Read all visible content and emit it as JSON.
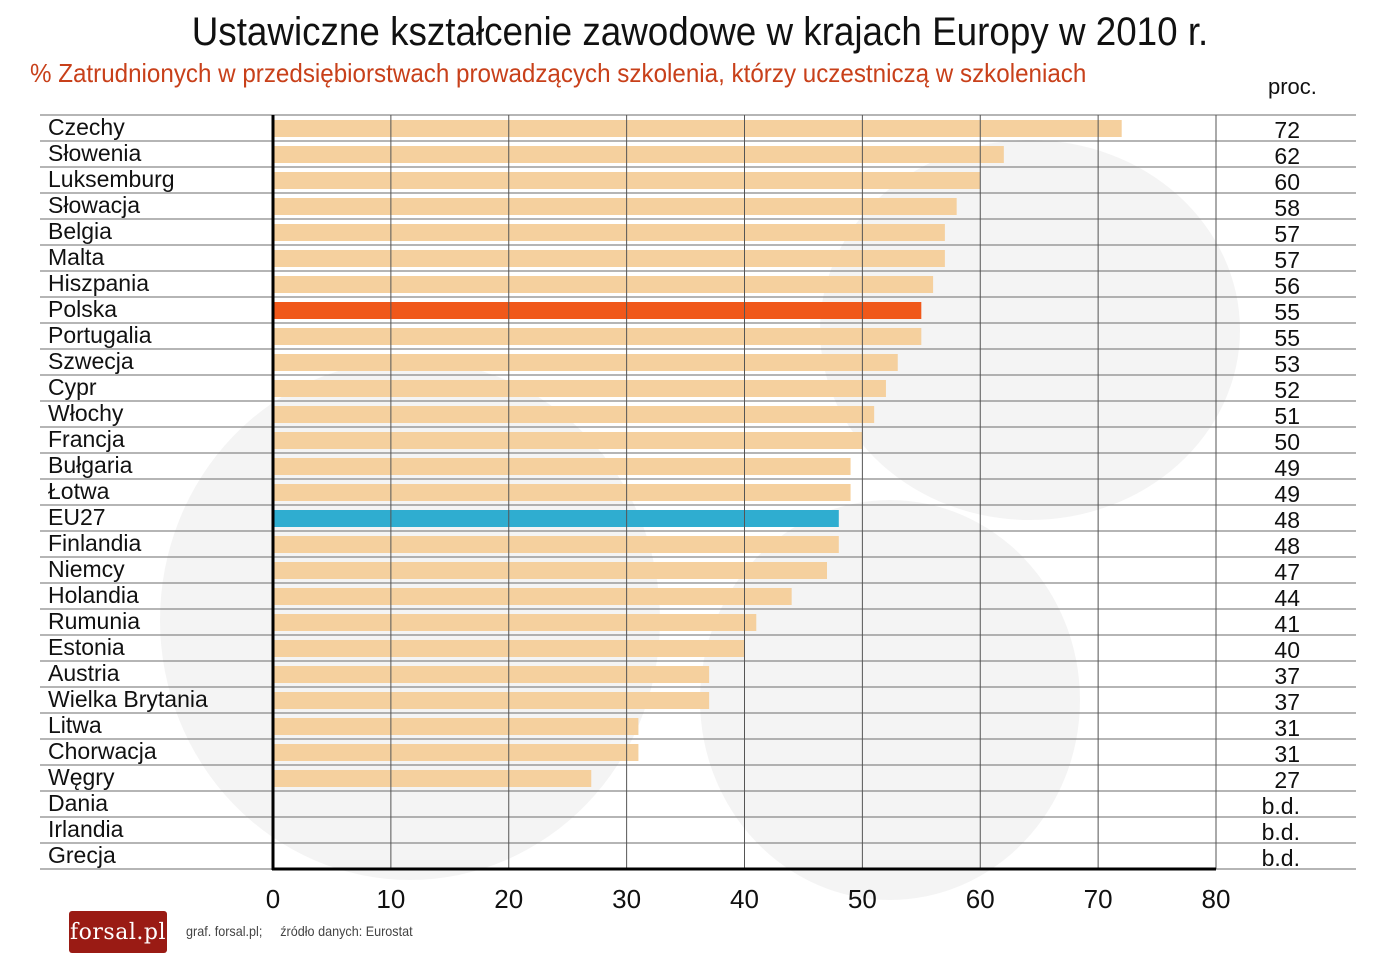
{
  "chart_data": {
    "type": "bar",
    "orientation": "horizontal",
    "title": "Ustawiczne kształcenie zawodowe w krajach Europy w 2010 r.",
    "subtitle": "% Zatrudnionych w przedsiębiorstwach prowadzących szkolenia, którzy uczestniczą w szkoleniach",
    "unit_label": "proc.",
    "categories": [
      "Czechy",
      "Słowenia",
      "Luksemburg",
      "Słowacja",
      "Belgia",
      "Malta",
      "Hiszpania",
      "Polska",
      "Portugalia",
      "Szwecja",
      "Cypr",
      "Włochy",
      "Francja",
      "Bułgaria",
      "Łotwa",
      "EU27",
      "Finlandia",
      "Niemcy",
      "Holandia",
      "Rumunia",
      "Estonia",
      "Austria",
      "Wielka Brytania",
      "Litwa",
      "Chorwacja",
      "Węgry",
      "Dania",
      "Irlandia",
      "Grecja"
    ],
    "values": [
      72,
      62,
      60,
      58,
      57,
      57,
      56,
      55,
      55,
      53,
      52,
      51,
      50,
      49,
      49,
      48,
      48,
      47,
      44,
      41,
      40,
      37,
      37,
      31,
      31,
      27,
      null,
      null,
      null
    ],
    "value_labels": [
      "72",
      "62",
      "60",
      "58",
      "57",
      "57",
      "56",
      "55",
      "55",
      "53",
      "52",
      "51",
      "50",
      "49",
      "49",
      "48",
      "48",
      "47",
      "44",
      "41",
      "40",
      "37",
      "37",
      "31",
      "31",
      "27",
      "b.d.",
      "b.d.",
      "b.d."
    ],
    "xlim": [
      0,
      80
    ],
    "xticks": [
      "0",
      "10",
      "20",
      "30",
      "40",
      "50",
      "60",
      "70",
      "80"
    ],
    "grid": true,
    "legend": "none",
    "colors": {
      "default": "#f5d09e",
      "Polska": "#f0581a",
      "EU27": "#2fadd0"
    }
  },
  "footer": {
    "logo_text": "forsal.pl",
    "credit": "graf. forsal.pl;",
    "source": "źródło danych: Eurostat"
  }
}
